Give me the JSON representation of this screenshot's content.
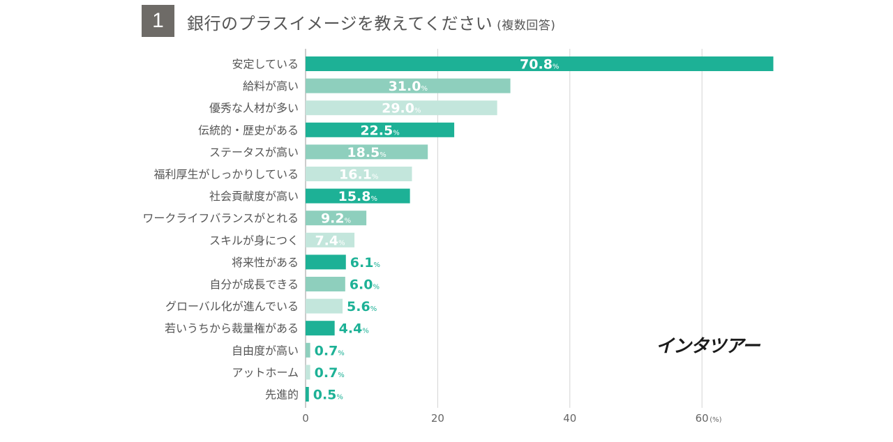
{
  "header": {
    "number": "1",
    "title": "銀行のプラスイメージを教えてください",
    "subtitle": "(複数回答)"
  },
  "logo": "インタツアー",
  "colors": {
    "dark": "#1db196",
    "mid": "#8ecfbd",
    "light": "#c3e6dc",
    "grid": "#d3d3d3"
  },
  "chart_data": {
    "type": "bar",
    "orientation": "horizontal",
    "title": "銀行のプラスイメージを教えてください (複数回答)",
    "unit_label": "(%)",
    "value_suffix": "%",
    "xlim": [
      0,
      70
    ],
    "ticks": [
      0,
      20,
      40,
      60
    ],
    "categories": [
      "安定している",
      "給料が高い",
      "優秀な人材が多い",
      "伝統的・歴史がある",
      "ステータスが高い",
      "福利厚生がしっかりしている",
      "社会貢献度が高い",
      "ワークライフバランスがとれる",
      "スキルが身につく",
      "将来性がある",
      "自分が成長できる",
      "グローバル化が進んでいる",
      "若いうちから裁量権がある",
      "自由度が高い",
      "アットホーム",
      "先進的"
    ],
    "values": [
      70.8,
      31.0,
      29.0,
      22.5,
      18.5,
      16.1,
      15.8,
      9.2,
      7.4,
      6.1,
      6.0,
      5.6,
      4.4,
      0.7,
      0.7,
      0.5
    ],
    "labels": [
      "70.8",
      "31.0",
      "29.0",
      "22.5",
      "18.5",
      "16.1",
      "15.8",
      "9.2",
      "7.4",
      "6.1",
      "6.0",
      "5.6",
      "4.4",
      "0.7",
      "0.7",
      "0.5"
    ]
  }
}
